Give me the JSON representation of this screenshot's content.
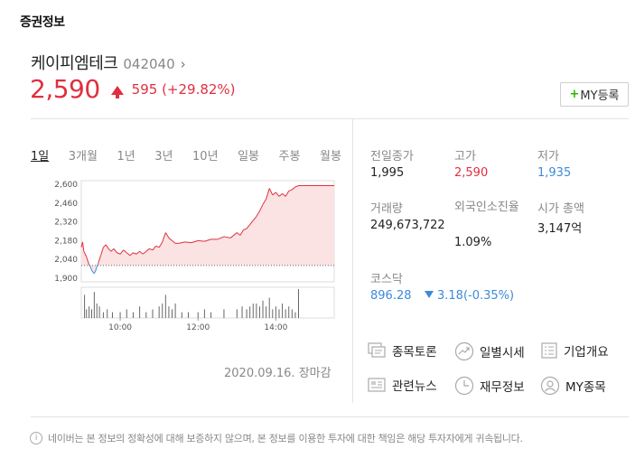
{
  "section_title": "증권정보",
  "stock": {
    "name": "케이피엠테크",
    "code": "042040",
    "price": "2,590",
    "change": "595 (+29.82%)",
    "my_button_label": "MY등록"
  },
  "period_tabs": [
    "1일",
    "3개월",
    "1년",
    "3년",
    "10년",
    "일봉",
    "주봉",
    "월봉"
  ],
  "active_tab": "1일",
  "date_status": "2020.09.16. 장마감",
  "stats": {
    "prev_close_label": "전일종가",
    "prev_close": "1,995",
    "high_label": "고가",
    "high": "2,590",
    "low_label": "저가",
    "low": "1,935",
    "volume_label": "거래량",
    "volume": "249,673,722",
    "foreign_label": "외국인소진율",
    "foreign": "1.09%",
    "market_cap_label": "시가 총액",
    "market_cap": "3,147억",
    "kosdaq_label": "코스닥",
    "kosdaq_value": "896.28",
    "kosdaq_change": "3.18(-0.35%)"
  },
  "links": [
    {
      "label": "종목토론",
      "icon": "discussion-icon"
    },
    {
      "label": "일별시세",
      "icon": "trend-icon"
    },
    {
      "label": "기업개요",
      "icon": "list-icon"
    },
    {
      "label": "관련뉴스",
      "icon": "news-icon"
    },
    {
      "label": "재무정보",
      "icon": "clock-icon"
    },
    {
      "label": "MY종목",
      "icon": "user-icon"
    }
  ],
  "disclaimer": "네이버는 본 정보의 정확성에 대해 보증하지 않으며, 본 정보를 이용한 투자에 대한 책임은 해당 투자자에게 귀속됩니다.",
  "chart_data": {
    "type": "area",
    "y_ticks": [
      "2,600",
      "2,460",
      "2,320",
      "2,180",
      "2,040",
      "1,900"
    ],
    "x_ticks": [
      "10:00",
      "12:00",
      "14:00"
    ],
    "ylim": [
      1900,
      2600
    ],
    "baseline": 1995,
    "x_range": [
      "09:00",
      "15:30"
    ],
    "price_series": [
      [
        "09:00",
        2130
      ],
      [
        "09:02",
        2170
      ],
      [
        "09:04",
        2100
      ],
      [
        "09:06",
        2080
      ],
      [
        "09:08",
        2060
      ],
      [
        "09:10",
        2030
      ],
      [
        "09:12",
        2000
      ],
      [
        "09:14",
        1985
      ],
      [
        "09:16",
        1960
      ],
      [
        "09:18",
        1945
      ],
      [
        "09:20",
        1935
      ],
      [
        "09:22",
        1955
      ],
      [
        "09:24",
        1985
      ],
      [
        "09:26",
        2010
      ],
      [
        "09:30",
        2070
      ],
      [
        "09:34",
        2130
      ],
      [
        "09:38",
        2150
      ],
      [
        "09:42",
        2120
      ],
      [
        "09:46",
        2100
      ],
      [
        "09:50",
        2120
      ],
      [
        "09:55",
        2090
      ],
      [
        "10:00",
        2080
      ],
      [
        "10:05",
        2110
      ],
      [
        "10:10",
        2090
      ],
      [
        "10:15",
        2070
      ],
      [
        "10:20",
        2090
      ],
      [
        "10:25",
        2080
      ],
      [
        "10:30",
        2100
      ],
      [
        "10:35",
        2080
      ],
      [
        "10:40",
        2100
      ],
      [
        "10:45",
        2120
      ],
      [
        "10:50",
        2110
      ],
      [
        "10:55",
        2140
      ],
      [
        "11:00",
        2130
      ],
      [
        "11:05",
        2170
      ],
      [
        "11:10",
        2240
      ],
      [
        "11:15",
        2200
      ],
      [
        "11:20",
        2180
      ],
      [
        "11:25",
        2160
      ],
      [
        "11:30",
        2160
      ],
      [
        "11:40",
        2170
      ],
      [
        "11:50",
        2165
      ],
      [
        "12:00",
        2180
      ],
      [
        "12:10",
        2175
      ],
      [
        "12:20",
        2190
      ],
      [
        "12:30",
        2190
      ],
      [
        "12:40",
        2210
      ],
      [
        "12:50",
        2200
      ],
      [
        "13:00",
        2240
      ],
      [
        "13:05",
        2220
      ],
      [
        "13:10",
        2260
      ],
      [
        "13:15",
        2270
      ],
      [
        "13:20",
        2300
      ],
      [
        "13:25",
        2330
      ],
      [
        "13:30",
        2360
      ],
      [
        "13:35",
        2400
      ],
      [
        "13:40",
        2450
      ],
      [
        "13:45",
        2490
      ],
      [
        "13:50",
        2570
      ],
      [
        "13:55",
        2520
      ],
      [
        "14:00",
        2540
      ],
      [
        "14:05",
        2510
      ],
      [
        "14:10",
        2530
      ],
      [
        "14:15",
        2510
      ],
      [
        "14:20",
        2550
      ],
      [
        "14:25",
        2560
      ],
      [
        "14:30",
        2580
      ],
      [
        "14:35",
        2590
      ],
      [
        "15:30",
        2590
      ]
    ],
    "volume_series": [
      [
        "09:05",
        8
      ],
      [
        "09:08",
        3
      ],
      [
        "09:12",
        4
      ],
      [
        "09:16",
        3
      ],
      [
        "09:20",
        9
      ],
      [
        "09:24",
        5
      ],
      [
        "09:28",
        4
      ],
      [
        "09:34",
        2
      ],
      [
        "09:40",
        3
      ],
      [
        "09:48",
        2
      ],
      [
        "10:00",
        2
      ],
      [
        "10:10",
        3
      ],
      [
        "10:20",
        2
      ],
      [
        "10:30",
        4
      ],
      [
        "10:40",
        2
      ],
      [
        "10:50",
        3
      ],
      [
        "11:00",
        4
      ],
      [
        "11:05",
        5
      ],
      [
        "11:10",
        8
      ],
      [
        "11:15",
        4
      ],
      [
        "11:20",
        3
      ],
      [
        "11:25",
        5
      ],
      [
        "11:35",
        2
      ],
      [
        "11:45",
        2
      ],
      [
        "12:00",
        2
      ],
      [
        "12:10",
        3
      ],
      [
        "12:20",
        2
      ],
      [
        "12:40",
        3
      ],
      [
        "13:00",
        3
      ],
      [
        "13:08",
        4
      ],
      [
        "13:15",
        3
      ],
      [
        "13:20",
        4
      ],
      [
        "13:25",
        5
      ],
      [
        "13:30",
        5
      ],
      [
        "13:35",
        4
      ],
      [
        "13:40",
        6
      ],
      [
        "13:45",
        4
      ],
      [
        "13:50",
        7
      ],
      [
        "13:55",
        3
      ],
      [
        "14:00",
        4
      ],
      [
        "14:05",
        3
      ],
      [
        "14:10",
        5
      ],
      [
        "14:15",
        3
      ],
      [
        "14:20",
        4
      ],
      [
        "14:25",
        3
      ],
      [
        "14:30",
        2
      ],
      [
        "14:35",
        10
      ]
    ]
  }
}
